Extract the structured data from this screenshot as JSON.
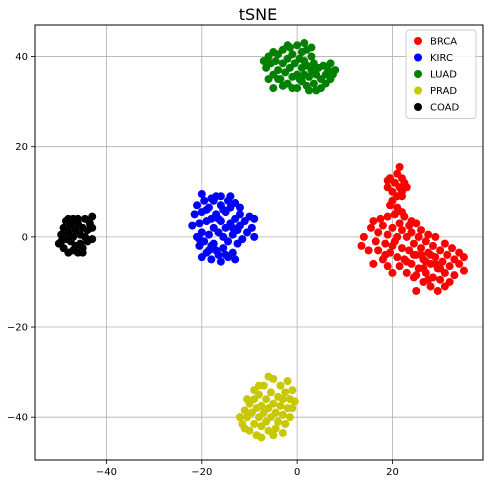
{
  "chart_data": {
    "type": "scatter",
    "title": "tSNE",
    "xlabel": "",
    "ylabel": "",
    "xlim": [
      -55,
      39
    ],
    "ylim": [
      -49.5,
      47
    ],
    "xticks": [
      -40,
      -20,
      0,
      20
    ],
    "yticks": [
      -40,
      -20,
      0,
      20,
      40
    ],
    "tick_labels": {
      "x": [
        "−40",
        "−20",
        "0",
        "20"
      ],
      "y": [
        "−40",
        "−20",
        "0",
        "20",
        "40"
      ]
    },
    "grid": true,
    "legend_position": "top-right",
    "series": [
      {
        "name": "BRCA",
        "color": "#ff0000",
        "points": [
          [
            14,
            0
          ],
          [
            15.5,
            2
          ],
          [
            16,
            3.5
          ],
          [
            16.5,
            -1
          ],
          [
            17,
            1
          ],
          [
            17,
            -3
          ],
          [
            17.5,
            4
          ],
          [
            18,
            -5
          ],
          [
            18,
            2.5
          ],
          [
            18.5,
            -1.5
          ],
          [
            19,
            0.5
          ],
          [
            19,
            -6.5
          ],
          [
            19,
            4.5
          ],
          [
            19.5,
            -3.5
          ],
          [
            20,
            2
          ],
          [
            20,
            -8
          ],
          [
            20.5,
            -1
          ],
          [
            20.5,
            5
          ],
          [
            21,
            0
          ],
          [
            21,
            -4.5
          ],
          [
            21.5,
            3
          ],
          [
            21.5,
            -6.5
          ],
          [
            22,
            1.5
          ],
          [
            22,
            -2.5
          ],
          [
            22.5,
            -5
          ],
          [
            22.5,
            4.5
          ],
          [
            23,
            0
          ],
          [
            23,
            -8
          ],
          [
            23.5,
            2.5
          ],
          [
            23.5,
            -3
          ],
          [
            24,
            -6
          ],
          [
            24,
            1
          ],
          [
            24.5,
            -1.5
          ],
          [
            24.5,
            -9
          ],
          [
            25,
            3
          ],
          [
            25,
            -4
          ],
          [
            25.5,
            0
          ],
          [
            25.5,
            -7
          ],
          [
            26,
            -2.5
          ],
          [
            26,
            1.5
          ],
          [
            26.5,
            -5
          ],
          [
            26.5,
            -10
          ],
          [
            27,
            -1
          ],
          [
            27,
            -8
          ],
          [
            27.5,
            0.5
          ],
          [
            27.5,
            -3.5
          ],
          [
            28,
            -6
          ],
          [
            28,
            -11
          ],
          [
            28.5,
            -2
          ],
          [
            28.5,
            -9
          ],
          [
            29,
            -4.5
          ],
          [
            29,
            0
          ],
          [
            29.5,
            -7
          ],
          [
            29.5,
            -12
          ],
          [
            30,
            -3
          ],
          [
            30,
            -9.5
          ],
          [
            30.5,
            -5.5
          ],
          [
            31,
            -1.5
          ],
          [
            31,
            -8
          ],
          [
            31.5,
            -4
          ],
          [
            32,
            -6.5
          ],
          [
            32,
            -10
          ],
          [
            32.5,
            -2.5
          ],
          [
            33,
            -5
          ],
          [
            33,
            -8.5
          ],
          [
            34,
            -6
          ],
          [
            34,
            -3.5
          ],
          [
            35,
            -7.5
          ],
          [
            35,
            -4.5
          ],
          [
            26,
            -4
          ],
          [
            27,
            -5.5
          ],
          [
            28,
            -4
          ],
          [
            29,
            -6
          ],
          [
            30,
            -7
          ],
          [
            27.5,
            -9.5
          ],
          [
            26.5,
            -7
          ],
          [
            24.5,
            -4
          ],
          [
            23,
            -5.5
          ],
          [
            25,
            -8.5
          ],
          [
            31,
            -11
          ],
          [
            22,
            5.5
          ],
          [
            24,
            3.5
          ],
          [
            20,
            -2
          ],
          [
            18.5,
            -4
          ],
          [
            16,
            -6
          ],
          [
            15,
            -3
          ],
          [
            13.5,
            -2
          ],
          [
            19.5,
            7
          ],
          [
            21,
            6.5
          ],
          [
            25,
            -12
          ],
          [
            19,
            11
          ],
          [
            19.5,
            13
          ],
          [
            20,
            10
          ],
          [
            20.5,
            12
          ],
          [
            21,
            14
          ],
          [
            21,
            9
          ],
          [
            21.5,
            11
          ],
          [
            22,
            13
          ],
          [
            22,
            10
          ],
          [
            22.5,
            12
          ],
          [
            23,
            11
          ],
          [
            20,
            8
          ],
          [
            21.5,
            15.5
          ],
          [
            19,
            12.5
          ],
          [
            22,
            9
          ]
        ]
      },
      {
        "name": "KIRC",
        "color": "#0000ff",
        "points": [
          [
            -22,
            2.5
          ],
          [
            -21.5,
            5
          ],
          [
            -21,
            0
          ],
          [
            -21,
            7
          ],
          [
            -20.5,
            3
          ],
          [
            -20.5,
            -2
          ],
          [
            -20,
            5.5
          ],
          [
            -20,
            1
          ],
          [
            -19.5,
            8
          ],
          [
            -19.5,
            -1
          ],
          [
            -19,
            3.5
          ],
          [
            -19,
            6
          ],
          [
            -18.5,
            0.5
          ],
          [
            -18.5,
            -3
          ],
          [
            -18,
            4
          ],
          [
            -18,
            8.5
          ],
          [
            -17.5,
            2
          ],
          [
            -17.5,
            -1.5
          ],
          [
            -17,
            5
          ],
          [
            -17,
            9
          ],
          [
            -16.5,
            1
          ],
          [
            -16.5,
            -4
          ],
          [
            -16,
            3.5
          ],
          [
            -16,
            7
          ],
          [
            -15.5,
            0
          ],
          [
            -15.5,
            -2.5
          ],
          [
            -15,
            5.5
          ],
          [
            -15,
            2
          ],
          [
            -14.5,
            8
          ],
          [
            -14.5,
            -1
          ],
          [
            -14,
            3
          ],
          [
            -14,
            6.5
          ],
          [
            -13.5,
            0.5
          ],
          [
            -13.5,
            -3.5
          ],
          [
            -13,
            4
          ],
          [
            -13,
            7.5
          ],
          [
            -12.5,
            1.5
          ],
          [
            -12.5,
            -1.5
          ],
          [
            -12,
            5
          ],
          [
            -12,
            2.5
          ],
          [
            -11.5,
            -0.5
          ],
          [
            -11,
            3.5
          ],
          [
            -10.5,
            1
          ],
          [
            -10,
            4.5
          ],
          [
            -9.5,
            2
          ],
          [
            -9,
            0
          ],
          [
            -9,
            4
          ],
          [
            -20,
            -4.5
          ],
          [
            -18,
            -5
          ],
          [
            -16,
            -5.5
          ],
          [
            -14.5,
            -4.5
          ],
          [
            -13,
            -5
          ],
          [
            -19,
            -3.5
          ],
          [
            -17,
            -3
          ],
          [
            -15,
            -4
          ],
          [
            -16.5,
            4
          ],
          [
            -18.5,
            6.5
          ],
          [
            -13.5,
            2
          ],
          [
            -15.5,
            6
          ],
          [
            -17.5,
            8
          ],
          [
            -20,
            9.5
          ],
          [
            -16,
            9
          ],
          [
            -14,
            9
          ],
          [
            -12,
            6.5
          ],
          [
            -18,
            -2
          ],
          [
            -20.5,
            -0.5
          ]
        ]
      },
      {
        "name": "LUAD",
        "color": "#008000",
        "points": [
          [
            -7,
            39
          ],
          [
            -6.5,
            37.5
          ],
          [
            -6,
            40
          ],
          [
            -5.5,
            38.5
          ],
          [
            -5,
            36
          ],
          [
            -5,
            41
          ],
          [
            -4.5,
            39
          ],
          [
            -4,
            37
          ],
          [
            -4,
            40.5
          ],
          [
            -3.5,
            35
          ],
          [
            -3,
            38.5
          ],
          [
            -3,
            41.5
          ],
          [
            -2.5,
            36.5
          ],
          [
            -2,
            39.5
          ],
          [
            -2,
            34
          ],
          [
            -1.5,
            37.5
          ],
          [
            -1.5,
            42
          ],
          [
            -1,
            35.5
          ],
          [
            -1,
            40.5
          ],
          [
            -0.5,
            38.5
          ],
          [
            0,
            36
          ],
          [
            0,
            42.5
          ],
          [
            0,
            33
          ],
          [
            0.5,
            39.5
          ],
          [
            1,
            34.5
          ],
          [
            1,
            37.5
          ],
          [
            1,
            41
          ],
          [
            1.5,
            36
          ],
          [
            1.5,
            39
          ],
          [
            2,
            33.5
          ],
          [
            2,
            38
          ],
          [
            2,
            41.5
          ],
          [
            2.5,
            35.5
          ],
          [
            3,
            37
          ],
          [
            3,
            40
          ],
          [
            3.5,
            34
          ],
          [
            3.5,
            38.5
          ],
          [
            4,
            36
          ],
          [
            4,
            32.5
          ],
          [
            4.5,
            37.5
          ],
          [
            5,
            35
          ],
          [
            5,
            33
          ],
          [
            5.5,
            38
          ],
          [
            6,
            36
          ],
          [
            6,
            34
          ],
          [
            6.5,
            37
          ],
          [
            7,
            35
          ],
          [
            7,
            38.5
          ],
          [
            7.5,
            36
          ],
          [
            8,
            37
          ],
          [
            -3,
            33.5
          ],
          [
            -1,
            33
          ],
          [
            0.5,
            35
          ],
          [
            -4,
            35
          ],
          [
            2.5,
            32.5
          ],
          [
            -6,
            35
          ],
          [
            -2,
            42.5
          ],
          [
            1.5,
            43
          ],
          [
            -5,
            33
          ],
          [
            3,
            42
          ]
        ]
      },
      {
        "name": "PRAD",
        "color": "#c8c800",
        "points": [
          [
            -12,
            -40
          ],
          [
            -11.5,
            -41.5
          ],
          [
            -11,
            -38.5
          ],
          [
            -11,
            -42.5
          ],
          [
            -10.5,
            -40
          ],
          [
            -10,
            -37
          ],
          [
            -10,
            -43
          ],
          [
            -9.5,
            -39
          ],
          [
            -9,
            -41.5
          ],
          [
            -9,
            -36
          ],
          [
            -8.5,
            -38
          ],
          [
            -8.5,
            -44
          ],
          [
            -8,
            -40
          ],
          [
            -8,
            -35
          ],
          [
            -7.5,
            -42
          ],
          [
            -7.5,
            -37.5
          ],
          [
            -7,
            -39
          ],
          [
            -7,
            -33
          ],
          [
            -6.5,
            -41
          ],
          [
            -6.5,
            -36
          ],
          [
            -6,
            -38
          ],
          [
            -6,
            -43
          ],
          [
            -5.5,
            -34.5
          ],
          [
            -5.5,
            -40
          ],
          [
            -5,
            -37
          ],
          [
            -5,
            -31.5
          ],
          [
            -4.5,
            -39
          ],
          [
            -4.5,
            -42.5
          ],
          [
            -4,
            -35.5
          ],
          [
            -4,
            -41
          ],
          [
            -3.5,
            -37.5
          ],
          [
            -3.5,
            -33
          ],
          [
            -3,
            -39.5
          ],
          [
            -3,
            -36
          ],
          [
            -2.5,
            -41.5
          ],
          [
            -2.5,
            -34.5
          ],
          [
            -2,
            -38
          ],
          [
            -2,
            -32
          ],
          [
            -1.5,
            -40
          ],
          [
            -1.5,
            -36
          ],
          [
            -1,
            -38
          ],
          [
            -1,
            -34
          ],
          [
            -0.5,
            -36.5
          ],
          [
            -9,
            -34
          ],
          [
            -10.5,
            -36
          ],
          [
            -6,
            -31
          ],
          [
            -7.5,
            -44.5
          ],
          [
            -5,
            -44
          ],
          [
            -3,
            -43.5
          ],
          [
            -8,
            -33
          ]
        ]
      },
      {
        "name": "COAD",
        "color": "#000000",
        "points": [
          [
            -50,
            -1.5
          ],
          [
            -49.5,
            0.5
          ],
          [
            -49,
            2
          ],
          [
            -49,
            -2.5
          ],
          [
            -48.5,
            -0.5
          ],
          [
            -48.5,
            3.5
          ],
          [
            -48,
            1
          ],
          [
            -48,
            -3.5
          ],
          [
            -47.5,
            -1
          ],
          [
            -47.5,
            2.5
          ],
          [
            -47,
            0
          ],
          [
            -47,
            4
          ],
          [
            -46.5,
            -2
          ],
          [
            -46.5,
            1.5
          ],
          [
            -46,
            -3.5
          ],
          [
            -46,
            3
          ],
          [
            -45.5,
            0.5
          ],
          [
            -45.5,
            -1.5
          ],
          [
            -45,
            2
          ],
          [
            -45,
            -2.5
          ],
          [
            -44.5,
            4
          ],
          [
            -44.5,
            0
          ],
          [
            -44,
            1.5
          ],
          [
            -44,
            -1
          ],
          [
            -43.5,
            3
          ],
          [
            -43,
            -0.5
          ],
          [
            -43,
            2
          ],
          [
            -43,
            4.5
          ],
          [
            -45,
            -3.5
          ],
          [
            -48,
            4
          ],
          [
            -46,
            4
          ],
          [
            -47,
            -3
          ],
          [
            -49.5,
            -1
          ]
        ]
      }
    ]
  }
}
